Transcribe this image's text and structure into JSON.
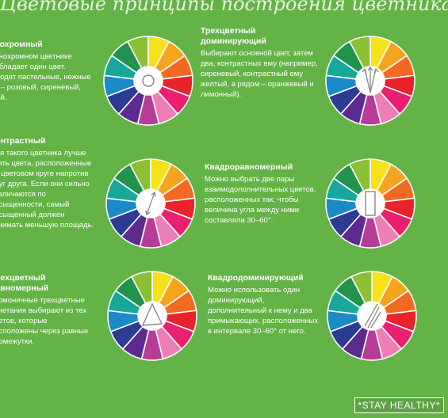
{
  "header": {
    "title": "Цветовые принципы построения цветника"
  },
  "palette": [
    "#f7e118",
    "#f5a51d",
    "#f26a21",
    "#e8232b",
    "#ea1f6f",
    "#ee7fb6",
    "#b53d97",
    "#5b2b90",
    "#2c3b94",
    "#1b8ac9",
    "#17a89b",
    "#22924f",
    "#8bbf34"
  ],
  "sections": [
    {
      "title": "Монохромный",
      "body": "В монохромном цветнике преобладает один цвет. Подходят пастельные, нежные тона – розовый, сиреневый, белый.",
      "icon": "circle-marker-icon"
    },
    {
      "title": "Трехцветный доминирующий",
      "body": "Выбирают основной цвет, затем два, контрастных ему (например, сиреневый, контрастный ему желтый, а рядом – оранжевый и лимонный).",
      "icon": "three-arrows-icon"
    },
    {
      "title": "Контрастный",
      "body": "Для такого цветника лучше взять цвета, расположенные на цветовом круге напротив друг друга. Если они сильно различаются по насыщенности, самый насыщенный должен занимать меньшую площадь.",
      "icon": "double-arrow-icon"
    },
    {
      "title": "Квадроравномерный",
      "body": "Можно выбрать две пары взаимодополнительных цветов, расположенных так, чтобы величина угла между ними составляла 30–60°.",
      "icon": "rectangle-marker-icon"
    },
    {
      "title": "Трехцветный равномерный",
      "body": "Гармоничные трехцветные сочетания выбирают из тех цветов, которые расположены через равные промежутки.",
      "icon": "triangle-marker-icon"
    },
    {
      "title": "Квадродоминирующий",
      "body": "Можно использовать один доминирующий, дополнительный к нему и два примыкающих, расположенных в интервале 30–60° от него.",
      "icon": "quad-lines-icon"
    }
  ],
  "watermark": "*STAY HEALTHY*"
}
